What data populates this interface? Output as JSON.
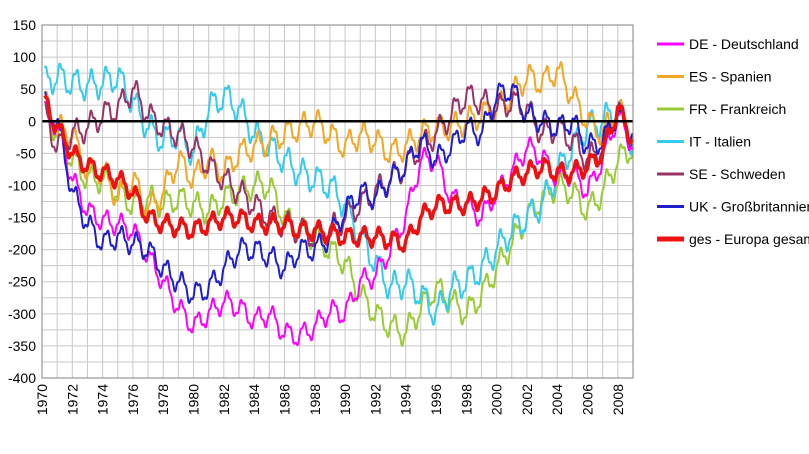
{
  "chart_data": {
    "type": "line",
    "ylim": [
      -400,
      150
    ],
    "y_ticks": [
      150,
      100,
      50,
      0,
      -50,
      -100,
      -150,
      -200,
      -250,
      -300,
      -350,
      -400
    ],
    "x_range": [
      1970,
      2009
    ],
    "x_ticks": [
      1970,
      1972,
      1974,
      1976,
      1978,
      1980,
      1982,
      1984,
      1986,
      1988,
      1990,
      1992,
      1994,
      1996,
      1998,
      2000,
      2002,
      2004,
      2006,
      2008
    ],
    "grid": true,
    "zero_line": true,
    "legend_position": "right",
    "series": [
      {
        "name": "DE - Deutschland",
        "color": "#ff00ff",
        "x_start": 1970.2,
        "x_end": 2009.0,
        "amplitude": 15,
        "points": [
          [
            1970.2,
            20
          ],
          [
            1971,
            -10
          ],
          [
            1972,
            -90
          ],
          [
            1973,
            -140
          ],
          [
            1974,
            -155
          ],
          [
            1975,
            -160
          ],
          [
            1976,
            -170
          ],
          [
            1977,
            -210
          ],
          [
            1978,
            -250
          ],
          [
            1979,
            -290
          ],
          [
            1980,
            -320
          ],
          [
            1981,
            -300
          ],
          [
            1982,
            -280
          ],
          [
            1983,
            -290
          ],
          [
            1984,
            -310
          ],
          [
            1985,
            -300
          ],
          [
            1986,
            -330
          ],
          [
            1987,
            -335
          ],
          [
            1988,
            -320
          ],
          [
            1989,
            -295
          ],
          [
            1990,
            -300
          ],
          [
            1991,
            -250
          ],
          [
            1992,
            -240
          ],
          [
            1993,
            -200
          ],
          [
            1994,
            -150
          ],
          [
            1995,
            -60
          ],
          [
            1996,
            -60
          ],
          [
            1997,
            -120
          ],
          [
            1998,
            -130
          ],
          [
            1999,
            -150
          ],
          [
            2000,
            -110
          ],
          [
            2001,
            -80
          ],
          [
            2002,
            -40
          ],
          [
            2003,
            -55
          ],
          [
            2004,
            -90
          ],
          [
            2005,
            -80
          ],
          [
            2006,
            -110
          ],
          [
            2007,
            -60
          ],
          [
            2008,
            10
          ],
          [
            2009,
            -40
          ]
        ]
      },
      {
        "name": "ES - Spanien",
        "color": "#f5a623",
        "x_start": 1970.2,
        "x_end": 2009.0,
        "amplitude": 18,
        "points": [
          [
            1970.2,
            30
          ],
          [
            1971,
            -10
          ],
          [
            1972,
            -20
          ],
          [
            1973,
            -80
          ],
          [
            1974,
            -75
          ],
          [
            1975,
            -120
          ],
          [
            1976,
            -90
          ],
          [
            1977,
            -140
          ],
          [
            1978,
            -110
          ],
          [
            1979,
            -60
          ],
          [
            1980,
            -90
          ],
          [
            1981,
            -60
          ],
          [
            1982,
            -80
          ],
          [
            1983,
            -50
          ],
          [
            1984,
            -40
          ],
          [
            1985,
            -30
          ],
          [
            1986,
            -20
          ],
          [
            1987,
            -10
          ],
          [
            1988,
            0
          ],
          [
            1989,
            -20
          ],
          [
            1990,
            -40
          ],
          [
            1991,
            -20
          ],
          [
            1992,
            -30
          ],
          [
            1993,
            -50
          ],
          [
            1994,
            -40
          ],
          [
            1995,
            -20
          ],
          [
            1996,
            -10
          ],
          [
            1997,
            -10
          ],
          [
            1998,
            0
          ],
          [
            1999,
            10
          ],
          [
            2000,
            20
          ],
          [
            2001,
            40
          ],
          [
            2002,
            70
          ],
          [
            2003,
            60
          ],
          [
            2004,
            80
          ],
          [
            2005,
            40
          ],
          [
            2006,
            0
          ],
          [
            2007,
            -20
          ],
          [
            2008,
            20
          ],
          [
            2009,
            -20
          ]
        ]
      },
      {
        "name": "FR - Frankreich",
        "color": "#99cc33",
        "x_start": 1970.2,
        "x_end": 2009.0,
        "amplitude": 18,
        "points": [
          [
            1970.2,
            20
          ],
          [
            1971,
            -20
          ],
          [
            1972,
            -60
          ],
          [
            1973,
            -90
          ],
          [
            1974,
            -90
          ],
          [
            1975,
            -110
          ],
          [
            1976,
            -130
          ],
          [
            1977,
            -120
          ],
          [
            1978,
            -130
          ],
          [
            1979,
            -120
          ],
          [
            1980,
            -130
          ],
          [
            1981,
            -140
          ],
          [
            1982,
            -120
          ],
          [
            1983,
            -110
          ],
          [
            1984,
            -100
          ],
          [
            1985,
            -100
          ],
          [
            1986,
            -150
          ],
          [
            1987,
            -170
          ],
          [
            1988,
            -180
          ],
          [
            1989,
            -200
          ],
          [
            1990,
            -220
          ],
          [
            1991,
            -270
          ],
          [
            1992,
            -300
          ],
          [
            1993,
            -320
          ],
          [
            1994,
            -330
          ],
          [
            1995,
            -290
          ],
          [
            1996,
            -260
          ],
          [
            1997,
            -280
          ],
          [
            1998,
            -300
          ],
          [
            1999,
            -270
          ],
          [
            2000,
            -230
          ],
          [
            2001,
            -190
          ],
          [
            2002,
            -150
          ],
          [
            2003,
            -120
          ],
          [
            2004,
            -100
          ],
          [
            2005,
            -110
          ],
          [
            2006,
            -140
          ],
          [
            2007,
            -110
          ],
          [
            2008,
            -60
          ],
          [
            2009,
            -40
          ]
        ]
      },
      {
        "name": "IT - Italien",
        "color": "#33ccee",
        "x_start": 1970.2,
        "x_end": 2009.0,
        "amplitude": 20,
        "points": [
          [
            1970.2,
            60
          ],
          [
            1971,
            70
          ],
          [
            1972,
            60
          ],
          [
            1973,
            55
          ],
          [
            1974,
            60
          ],
          [
            1975,
            70
          ],
          [
            1976,
            30
          ],
          [
            1977,
            -10
          ],
          [
            1978,
            -30
          ],
          [
            1979,
            -20
          ],
          [
            1980,
            -50
          ],
          [
            1981,
            20
          ],
          [
            1982,
            40
          ],
          [
            1983,
            20
          ],
          [
            1984,
            -20
          ],
          [
            1985,
            -40
          ],
          [
            1986,
            -60
          ],
          [
            1987,
            -80
          ],
          [
            1988,
            -90
          ],
          [
            1989,
            -100
          ],
          [
            1990,
            -130
          ],
          [
            1991,
            -180
          ],
          [
            1992,
            -220
          ],
          [
            1993,
            -260
          ],
          [
            1994,
            -250
          ],
          [
            1995,
            -270
          ],
          [
            1996,
            -300
          ],
          [
            1997,
            -260
          ],
          [
            1998,
            -250
          ],
          [
            1999,
            -230
          ],
          [
            2000,
            -200
          ],
          [
            2001,
            -170
          ],
          [
            2002,
            -150
          ],
          [
            2003,
            -130
          ],
          [
            2004,
            -80
          ],
          [
            2005,
            -40
          ],
          [
            2006,
            -10
          ],
          [
            2007,
            0
          ],
          [
            2008,
            20
          ],
          [
            2009,
            -40
          ]
        ]
      },
      {
        "name": "SE - Schweden",
        "color": "#993366",
        "x_start": 1970.2,
        "x_end": 2009.0,
        "amplitude": 18,
        "points": [
          [
            1970.2,
            10
          ],
          [
            1971,
            -40
          ],
          [
            1972,
            -20
          ],
          [
            1973,
            -10
          ],
          [
            1974,
            10
          ],
          [
            1975,
            20
          ],
          [
            1976,
            50
          ],
          [
            1977,
            10
          ],
          [
            1978,
            -10
          ],
          [
            1979,
            -20
          ],
          [
            1980,
            -40
          ],
          [
            1981,
            -70
          ],
          [
            1982,
            -90
          ],
          [
            1983,
            -110
          ],
          [
            1984,
            -130
          ],
          [
            1985,
            -150
          ],
          [
            1986,
            -160
          ],
          [
            1987,
            -170
          ],
          [
            1988,
            -180
          ],
          [
            1989,
            -170
          ],
          [
            1990,
            -150
          ],
          [
            1991,
            -130
          ],
          [
            1992,
            -110
          ],
          [
            1993,
            -90
          ],
          [
            1994,
            -70
          ],
          [
            1995,
            -40
          ],
          [
            1996,
            -20
          ],
          [
            1997,
            10
          ],
          [
            1998,
            40
          ],
          [
            1999,
            30
          ],
          [
            2000,
            20
          ],
          [
            2001,
            30
          ],
          [
            2002,
            20
          ],
          [
            2003,
            -20
          ],
          [
            2004,
            -10
          ],
          [
            2005,
            -30
          ],
          [
            2006,
            -60
          ],
          [
            2007,
            -40
          ],
          [
            2008,
            20
          ],
          [
            2009,
            -30
          ]
        ]
      },
      {
        "name": "UK - Großbritannien",
        "color": "#1f1fcc",
        "x_start": 1970.2,
        "x_end": 2009.0,
        "amplitude": 16,
        "points": [
          [
            1970.2,
            30
          ],
          [
            1971,
            0
          ],
          [
            1972,
            -110
          ],
          [
            1973,
            -160
          ],
          [
            1974,
            -190
          ],
          [
            1975,
            -180
          ],
          [
            1976,
            -190
          ],
          [
            1977,
            -200
          ],
          [
            1978,
            -230
          ],
          [
            1979,
            -250
          ],
          [
            1980,
            -270
          ],
          [
            1981,
            -260
          ],
          [
            1982,
            -230
          ],
          [
            1983,
            -200
          ],
          [
            1984,
            -200
          ],
          [
            1985,
            -210
          ],
          [
            1986,
            -230
          ],
          [
            1987,
            -200
          ],
          [
            1988,
            -200
          ],
          [
            1989,
            -180
          ],
          [
            1990,
            -140
          ],
          [
            1991,
            -110
          ],
          [
            1992,
            -120
          ],
          [
            1993,
            -90
          ],
          [
            1994,
            -70
          ],
          [
            1995,
            -30
          ],
          [
            1996,
            -60
          ],
          [
            1997,
            -40
          ],
          [
            1998,
            -10
          ],
          [
            1999,
            -20
          ],
          [
            2000,
            40
          ],
          [
            2001,
            50
          ],
          [
            2002,
            10
          ],
          [
            2003,
            0
          ],
          [
            2004,
            -10
          ],
          [
            2005,
            0
          ],
          [
            2006,
            -40
          ],
          [
            2007,
            -30
          ],
          [
            2008,
            10
          ],
          [
            2009,
            -20
          ]
        ]
      },
      {
        "name": "ges - Europa gesamt",
        "color": "#ee1111",
        "x_start": 1970.2,
        "x_end": 2009.0,
        "amplitude": 13,
        "thick": true,
        "points": [
          [
            1970.2,
            30
          ],
          [
            1971,
            -10
          ],
          [
            1972,
            -50
          ],
          [
            1973,
            -70
          ],
          [
            1974,
            -80
          ],
          [
            1975,
            -90
          ],
          [
            1976,
            -110
          ],
          [
            1977,
            -150
          ],
          [
            1978,
            -160
          ],
          [
            1979,
            -165
          ],
          [
            1980,
            -170
          ],
          [
            1981,
            -160
          ],
          [
            1982,
            -150
          ],
          [
            1983,
            -150
          ],
          [
            1984,
            -160
          ],
          [
            1985,
            -160
          ],
          [
            1986,
            -160
          ],
          [
            1987,
            -170
          ],
          [
            1988,
            -170
          ],
          [
            1989,
            -175
          ],
          [
            1990,
            -180
          ],
          [
            1991,
            -180
          ],
          [
            1992,
            -180
          ],
          [
            1993,
            -185
          ],
          [
            1994,
            -190
          ],
          [
            1995,
            -150
          ],
          [
            1996,
            -130
          ],
          [
            1997,
            -130
          ],
          [
            1998,
            -130
          ],
          [
            1999,
            -120
          ],
          [
            2000,
            -110
          ],
          [
            2001,
            -90
          ],
          [
            2002,
            -80
          ],
          [
            2003,
            -70
          ],
          [
            2004,
            -80
          ],
          [
            2005,
            -80
          ],
          [
            2006,
            -70
          ],
          [
            2007,
            -50
          ],
          [
            2008,
            20
          ],
          [
            2009,
            -30
          ]
        ]
      }
    ]
  }
}
